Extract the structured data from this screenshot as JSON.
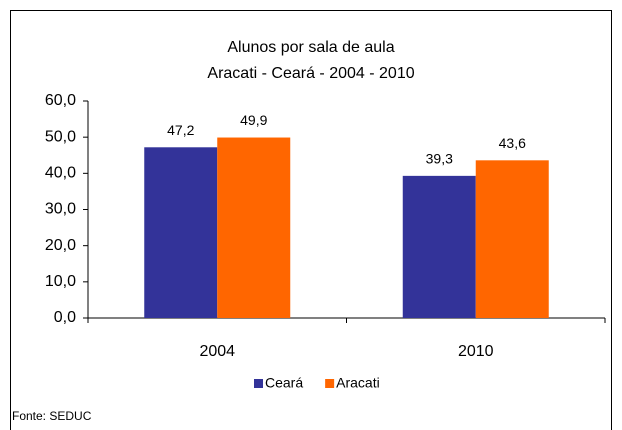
{
  "chart_data": {
    "type": "bar",
    "title": "Alunos por sala de aula",
    "subtitle": "Aracati  - Ceará - 2004 - 2010",
    "categories": [
      "2004",
      "2010"
    ],
    "series": [
      {
        "name": "Ceará",
        "color": "#333399",
        "values": [
          47.2,
          39.3
        ],
        "value_labels": [
          "47,2",
          "39,3"
        ]
      },
      {
        "name": "Aracati",
        "color": "#ff6600",
        "values": [
          49.9,
          43.6
        ],
        "value_labels": [
          "49,9",
          "43,6"
        ]
      }
    ],
    "ylim": [
      0,
      60
    ],
    "yticks": [
      {
        "value": 0,
        "label": "0,0"
      },
      {
        "value": 10,
        "label": "10,0"
      },
      {
        "value": 20,
        "label": "20,0"
      },
      {
        "value": 30,
        "label": "30,0"
      },
      {
        "value": 40,
        "label": "40,0"
      },
      {
        "value": 50,
        "label": "50,0"
      },
      {
        "value": 60,
        "label": "60,0"
      }
    ],
    "legend": "bottom",
    "source": "Fonte: SEDUC"
  }
}
